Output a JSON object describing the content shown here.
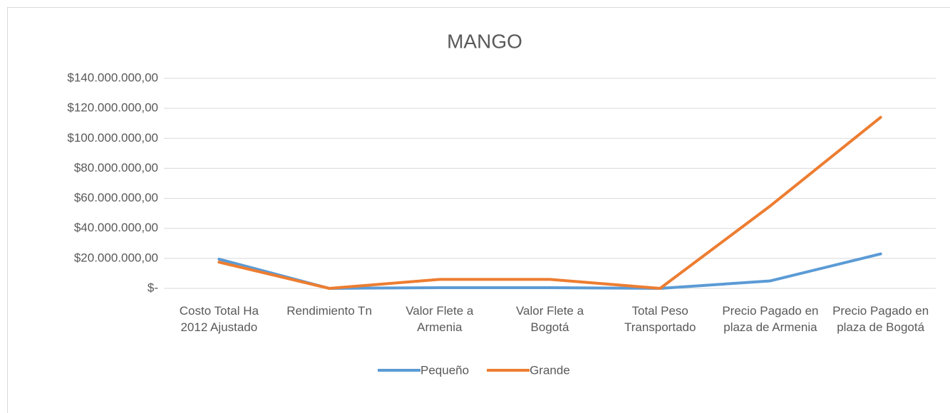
{
  "chart_data": {
    "type": "line",
    "title": "MANGO",
    "categories": [
      "Costo Total Ha 2012 Ajustado",
      "Rendimiento Tn",
      "Valor Flete a Armenia",
      "Valor Flete a Bogotá",
      "Total Peso Transportado",
      "Precio Pagado en plaza de Armenia",
      "Precio Pagado en plaza de Bogotá"
    ],
    "series": [
      {
        "name": "Pequeño",
        "color": "#5b9bd5",
        "values": [
          19500000,
          0,
          500000,
          500000,
          0,
          5000000,
          23000000
        ]
      },
      {
        "name": "Grande",
        "color": "#ed7d31",
        "values": [
          17500000,
          0,
          6000000,
          6000000,
          0,
          55000000,
          114000000
        ]
      }
    ],
    "ylim": [
      0,
      140000000
    ],
    "yticks": [
      {
        "value": 0,
        "label": "$-"
      },
      {
        "value": 20000000,
        "label": "$20.000.000,00"
      },
      {
        "value": 40000000,
        "label": "$40.000.000,00"
      },
      {
        "value": 60000000,
        "label": "$60.000.000,00"
      },
      {
        "value": 80000000,
        "label": "$80.000.000,00"
      },
      {
        "value": 100000000,
        "label": "$100.000.000,00"
      },
      {
        "value": 120000000,
        "label": "$120.000.000,00"
      },
      {
        "value": 140000000,
        "label": "$140.000.000,00"
      }
    ],
    "grid": true,
    "legend": "bottom"
  }
}
